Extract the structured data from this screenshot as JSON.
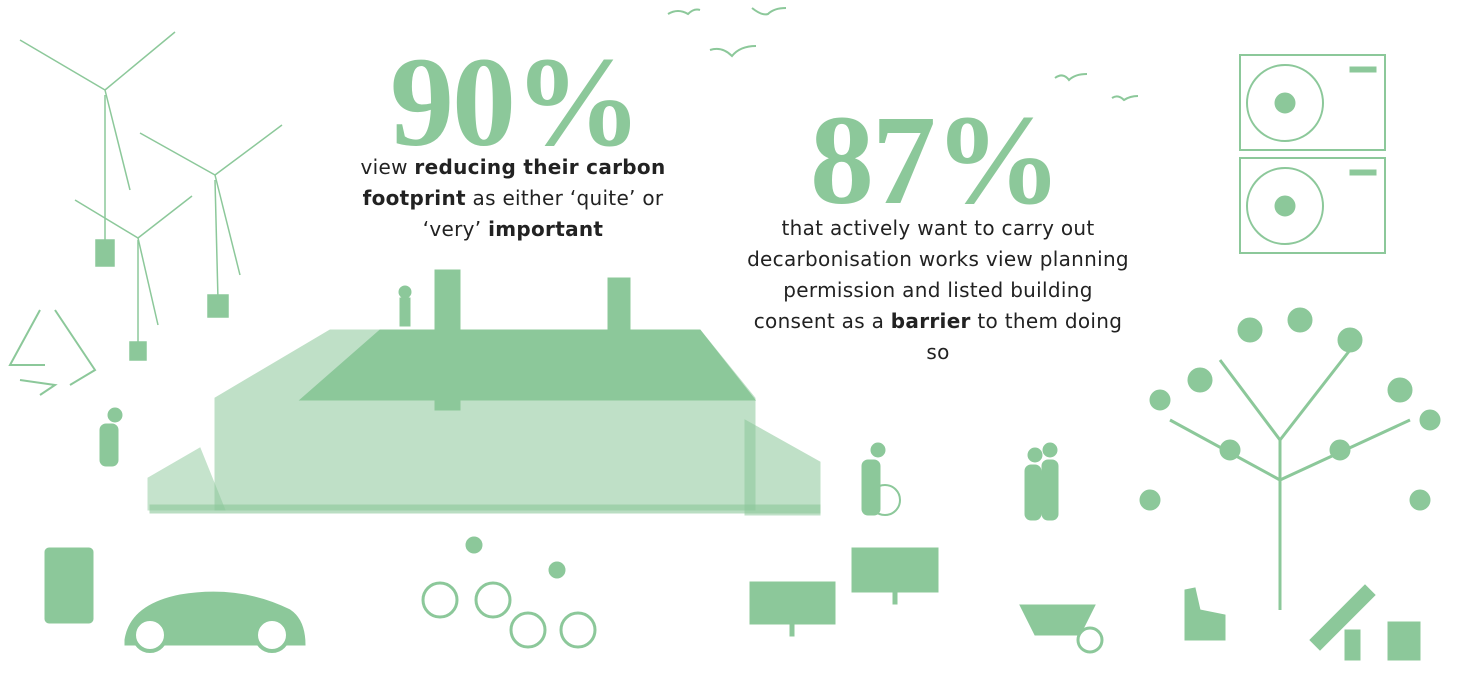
{
  "stats": [
    {
      "figure": "90%",
      "parts": [
        "view ",
        "reducing their carbon footprint",
        " as either ‘quite’ or ‘very’ ",
        "important"
      ]
    },
    {
      "figure": "87%",
      "parts": [
        "that actively want to carry out decarbonisation works view planning permission and listed building consent as a ",
        "barrier",
        " to them doing so"
      ]
    }
  ]
}
